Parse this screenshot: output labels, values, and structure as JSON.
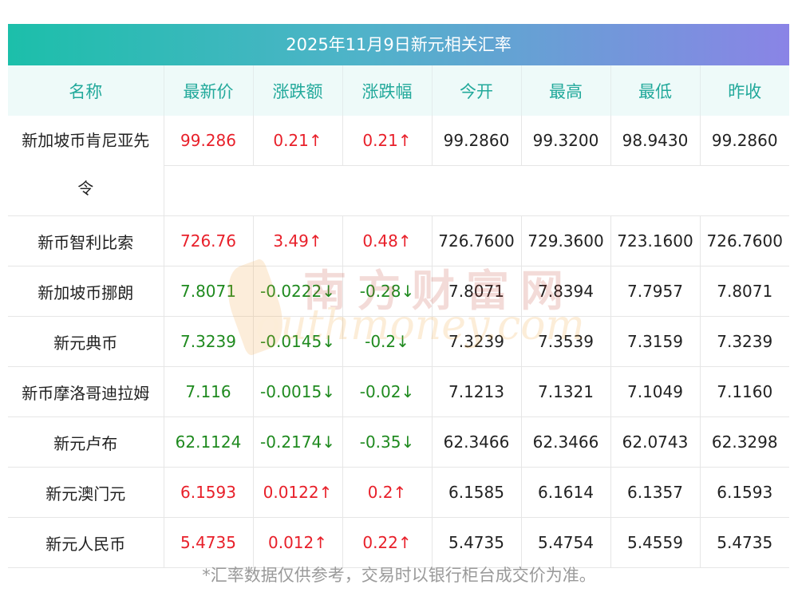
{
  "title": "2025年11月9日新元相关汇率",
  "headers": [
    "名称",
    "最新价",
    "涨跌额",
    "涨跌幅",
    "今开",
    "最高",
    "最低",
    "昨收"
  ],
  "rows": [
    {
      "name": "新加坡币肯尼亚先令",
      "latest": "99.286",
      "change": "0.21↑",
      "pct": "0.21↑",
      "open": "99.2860",
      "high": "99.3200",
      "low": "98.9430",
      "prev": "99.2860",
      "dir": "up"
    },
    {
      "name": "新币智利比索",
      "latest": "726.76",
      "change": "3.49↑",
      "pct": "0.48↑",
      "open": "726.7600",
      "high": "729.3600",
      "low": "723.1600",
      "prev": "726.7600",
      "dir": "up"
    },
    {
      "name": "新加坡币挪朗",
      "latest": "7.8071",
      "change": "-0.0222↓",
      "pct": "-0.28↓",
      "open": "7.8071",
      "high": "7.8394",
      "low": "7.7957",
      "prev": "7.8071",
      "dir": "down"
    },
    {
      "name": "新元典币",
      "latest": "7.3239",
      "change": "-0.0145↓",
      "pct": "-0.2↓",
      "open": "7.3239",
      "high": "7.3539",
      "low": "7.3159",
      "prev": "7.3239",
      "dir": "down"
    },
    {
      "name": "新币摩洛哥迪拉姆",
      "latest": "7.116",
      "change": "-0.0015↓",
      "pct": "-0.02↓",
      "open": "7.1213",
      "high": "7.1321",
      "low": "7.1049",
      "prev": "7.1160",
      "dir": "down"
    },
    {
      "name": "新元卢布",
      "latest": "62.1124",
      "change": "-0.2174↓",
      "pct": "-0.35↓",
      "open": "62.3466",
      "high": "62.3466",
      "low": "62.0743",
      "prev": "62.3298",
      "dir": "down"
    },
    {
      "name": "新元澳门元",
      "latest": "6.1593",
      "change": "0.0122↑",
      "pct": "0.2↑",
      "open": "6.1585",
      "high": "6.1614",
      "low": "6.1357",
      "prev": "6.1593",
      "dir": "up"
    },
    {
      "name": "新元人民币",
      "latest": "5.4735",
      "change": "0.012↑",
      "pct": "0.22↑",
      "open": "5.4735",
      "high": "5.4754",
      "low": "5.4559",
      "prev": "5.4735",
      "dir": "up"
    }
  ],
  "watermark": {
    "cn": "南方财富网",
    "en": "outhmoney.com"
  },
  "footnote": "*汇率数据仅供参考，交易时以银行柜台成交价为准。",
  "colors": {
    "up": "#e8202a",
    "down": "#1f8a1f",
    "header_text": "#22a99b",
    "title_start": "#1cbfaa",
    "title_end": "#8a84e6"
  }
}
